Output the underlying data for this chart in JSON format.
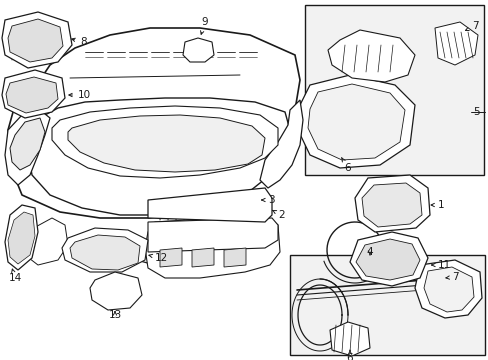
{
  "background_color": "#ffffff",
  "line_color": "#1a1a1a",
  "box_fill": "#f2f2f2",
  "fig_width": 4.89,
  "fig_height": 3.6,
  "dpi": 100,
  "xlim": [
    0,
    489
  ],
  "ylim": [
    0,
    360
  ]
}
